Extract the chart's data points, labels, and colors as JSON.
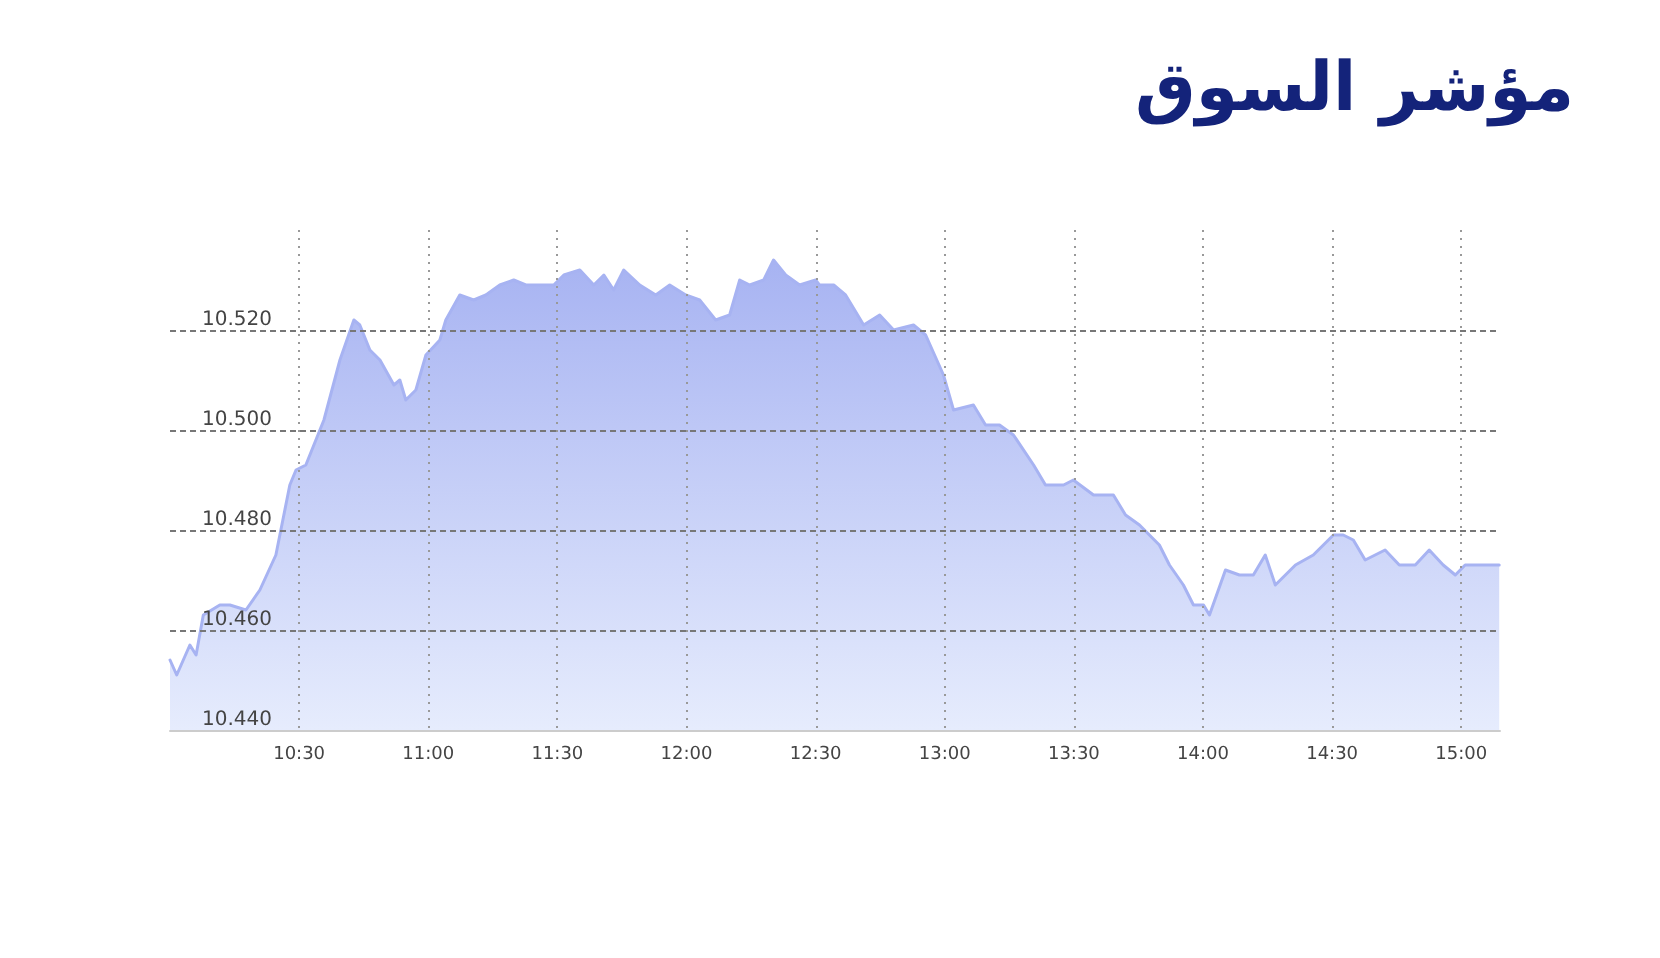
{
  "chart_data": {
    "type": "area",
    "title": "مؤشر السوق",
    "x": [
      10.0,
      10.026,
      10.077,
      10.101,
      10.129,
      10.193,
      10.232,
      10.294,
      10.348,
      10.41,
      10.464,
      10.488,
      10.526,
      10.596,
      10.658,
      10.712,
      10.735,
      10.774,
      10.813,
      10.867,
      10.89,
      10.913,
      10.952,
      10.991,
      11.045,
      11.068,
      11.122,
      11.176,
      11.223,
      11.277,
      11.331,
      11.378,
      11.432,
      11.486,
      11.525,
      11.587,
      11.641,
      11.68,
      11.718,
      11.757,
      11.819,
      11.881,
      11.935,
      11.997,
      12.051,
      12.113,
      12.167,
      12.206,
      12.245,
      12.299,
      12.337,
      12.384,
      12.438,
      12.5,
      12.515,
      12.57,
      12.616,
      12.686,
      12.748,
      12.802,
      12.879,
      12.926,
      12.995,
      13.034,
      13.111,
      13.158,
      13.212,
      13.266,
      13.344,
      13.39,
      13.46,
      13.498,
      13.576,
      13.653,
      13.7,
      13.754,
      13.831,
      13.87,
      13.924,
      13.963,
      14.002,
      14.025,
      14.087,
      14.141,
      14.195,
      14.241,
      14.28,
      14.358,
      14.427,
      14.505,
      14.543,
      14.582,
      14.628,
      14.705,
      14.76,
      14.822,
      14.876,
      14.93,
      14.977,
      15.015,
      15.147
    ],
    "series": [
      {
        "color": "#a7b3f2",
        "values": [
          10.454,
          10.451,
          10.457,
          10.455,
          10.463,
          10.465,
          10.465,
          10.464,
          10.468,
          10.475,
          10.489,
          10.492,
          10.493,
          10.502,
          10.514,
          10.522,
          10.521,
          10.516,
          10.514,
          10.509,
          10.51,
          10.506,
          10.508,
          10.515,
          10.518,
          10.522,
          10.527,
          10.526,
          10.527,
          10.529,
          10.53,
          10.529,
          10.529,
          10.529,
          10.531,
          10.532,
          10.529,
          10.531,
          10.528,
          10.532,
          10.529,
          10.527,
          10.529,
          10.527,
          10.526,
          10.522,
          10.523,
          10.53,
          10.529,
          10.53,
          10.534,
          10.531,
          10.529,
          10.53,
          10.529,
          10.529,
          10.527,
          10.521,
          10.523,
          10.52,
          10.521,
          10.519,
          10.511,
          10.504,
          10.505,
          10.501,
          10.501,
          10.499,
          10.493,
          10.489,
          10.489,
          10.49,
          10.487,
          10.487,
          10.483,
          10.481,
          10.477,
          10.473,
          10.469,
          10.465,
          10.465,
          10.463,
          10.472,
          10.471,
          10.471,
          10.475,
          10.469,
          10.473,
          10.475,
          10.479,
          10.479,
          10.478,
          10.474,
          10.476,
          10.473,
          10.473,
          10.476,
          10.473,
          10.471,
          10.473,
          10.473
        ]
      }
    ],
    "xlim": [
      10,
      15.15
    ],
    "xticks": [
      {
        "value": 10.5,
        "label": "10:30"
      },
      {
        "value": 11,
        "label": "11:00"
      },
      {
        "value": 11.5,
        "label": "11:30"
      },
      {
        "value": 12,
        "label": "12:00"
      },
      {
        "value": 12.5,
        "label": "12:30"
      },
      {
        "value": 13,
        "label": "13:00"
      },
      {
        "value": 13.5,
        "label": "13:30"
      },
      {
        "value": 14,
        "label": "14:00"
      },
      {
        "value": 14.5,
        "label": "14:30"
      },
      {
        "value": 15,
        "label": "15:00"
      }
    ],
    "ylim": [
      10.44,
      10.54
    ],
    "yticks": [
      {
        "value": 10.44,
        "label": "10.440"
      },
      {
        "value": 10.46,
        "label": "10.460"
      },
      {
        "value": 10.48,
        "label": "10.480"
      },
      {
        "value": 10.5,
        "label": "10.500"
      },
      {
        "value": 10.52,
        "label": "10.520"
      }
    ],
    "grid": true,
    "marker": "none",
    "line_style": "solid"
  }
}
